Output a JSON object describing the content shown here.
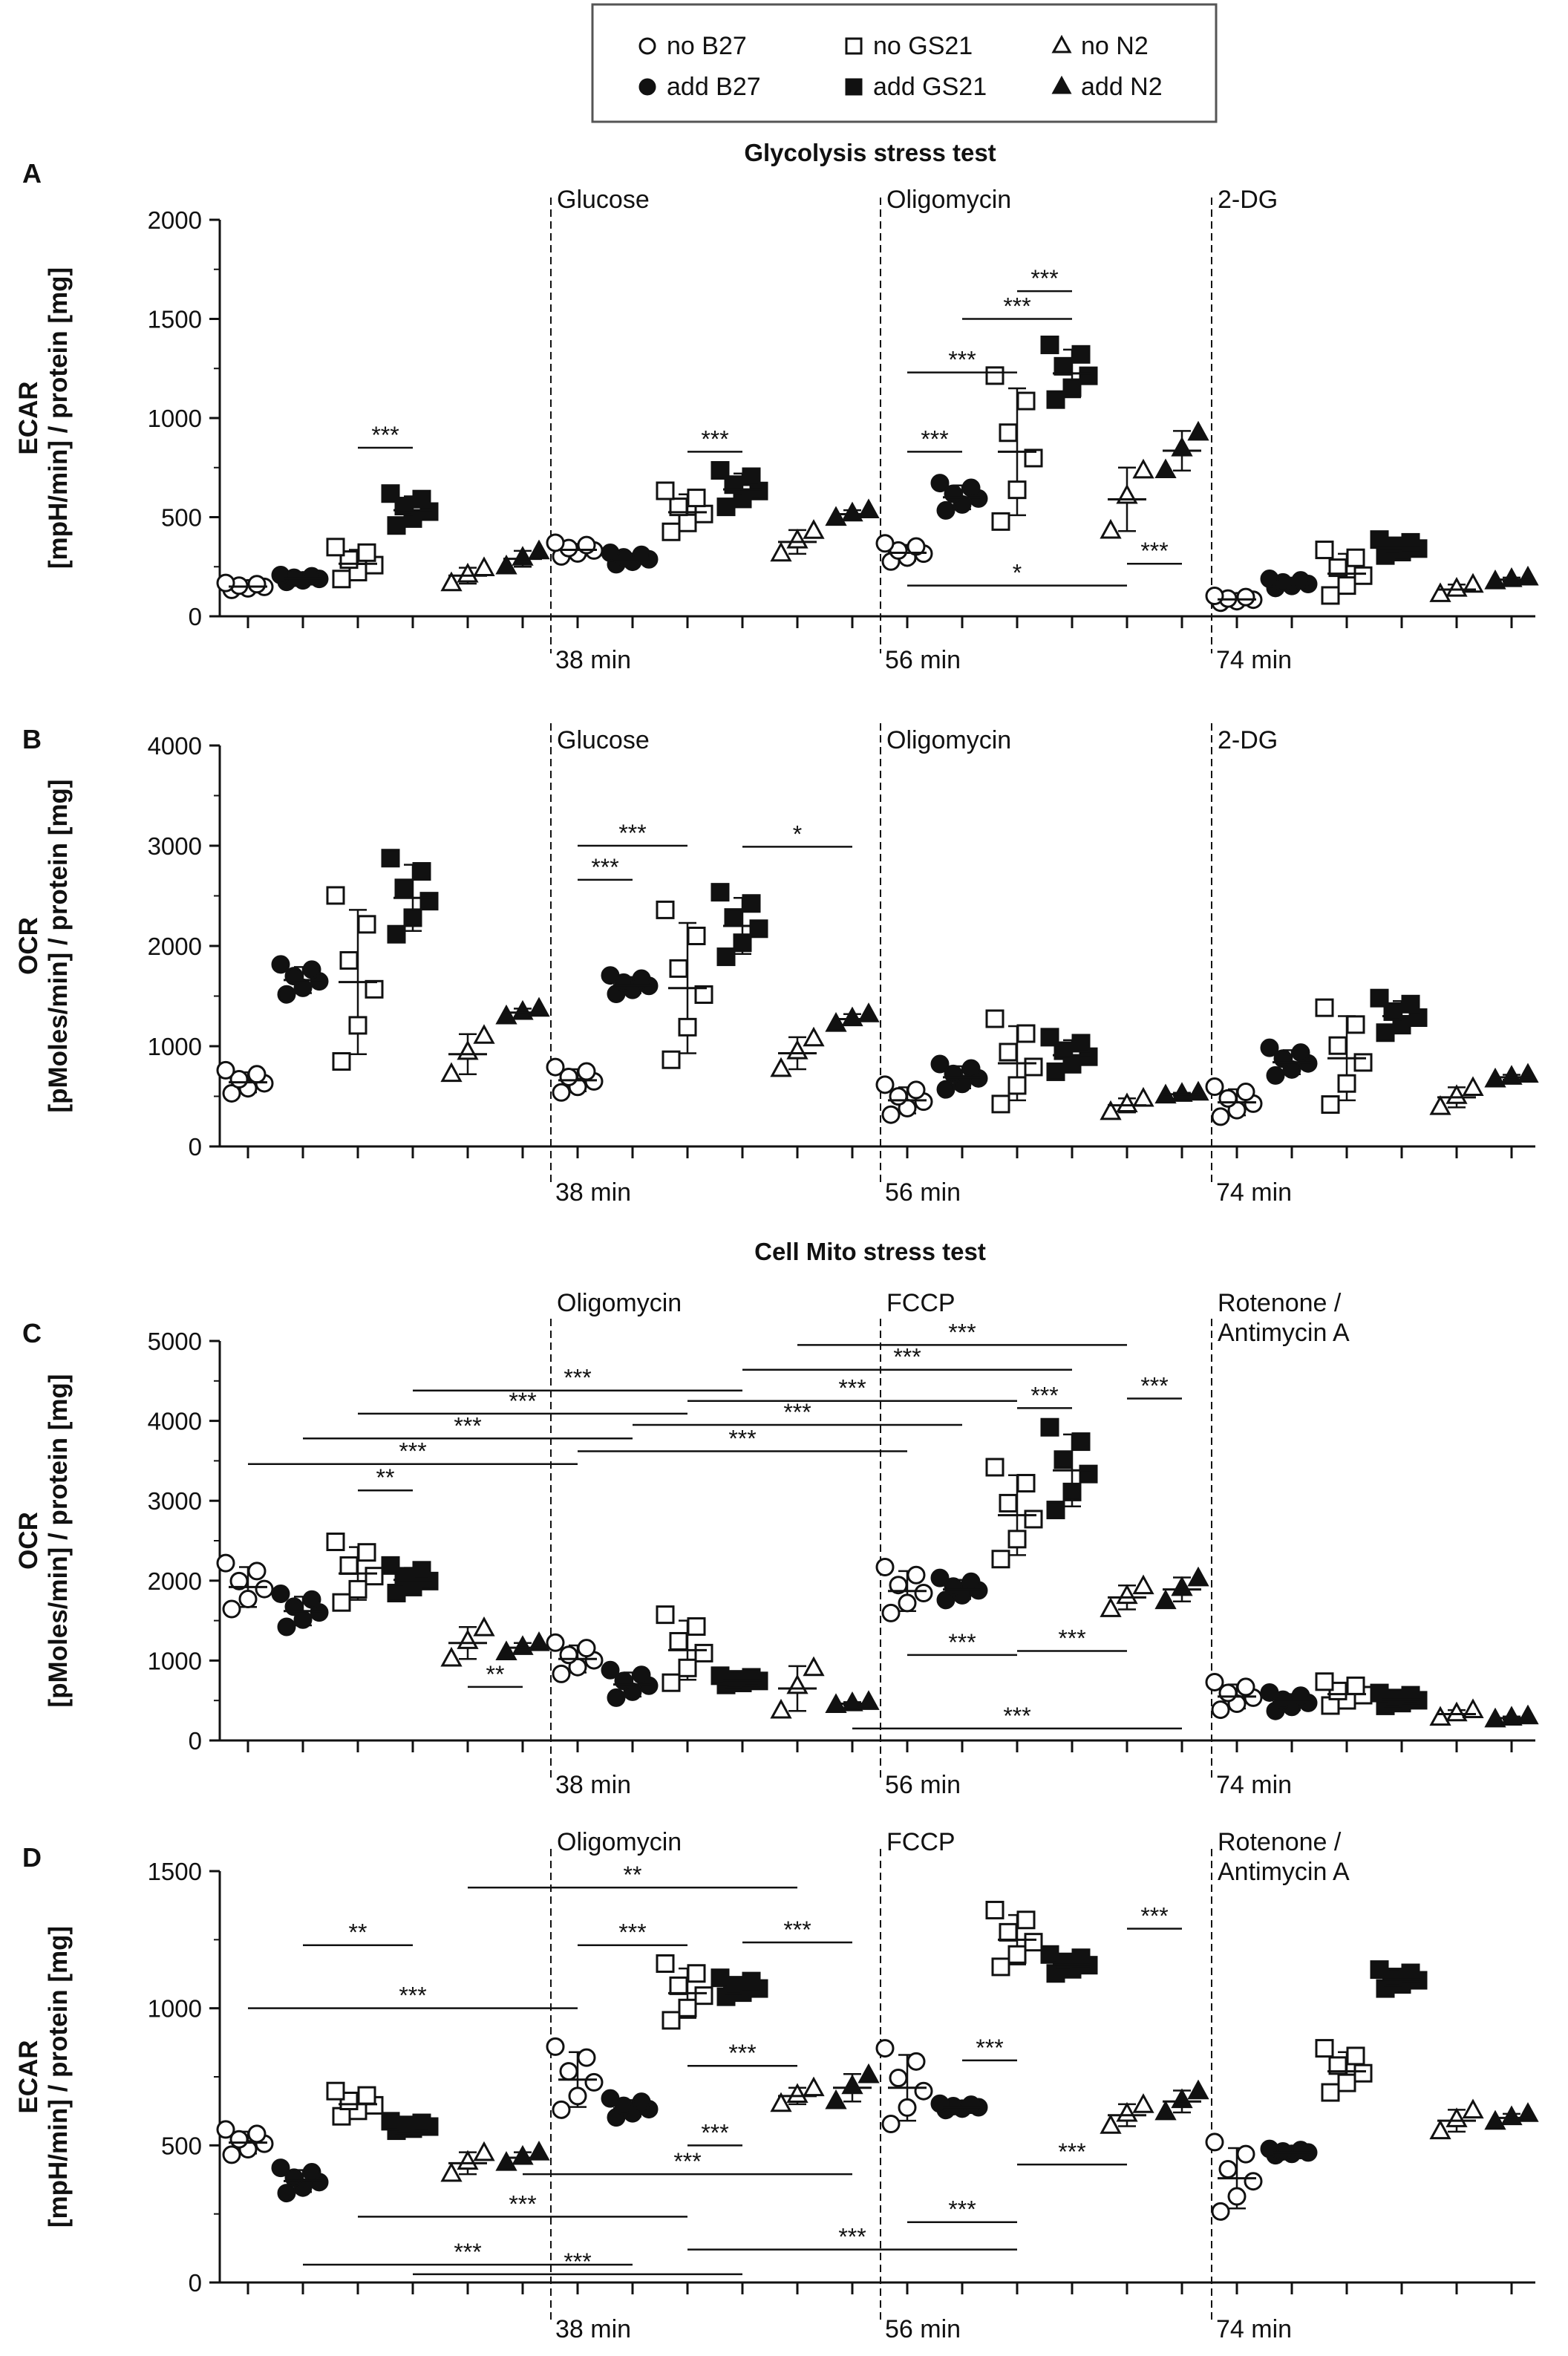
{
  "legend": {
    "items": [
      {
        "label": "no B27",
        "shape": "circle",
        "filled": false
      },
      {
        "label": "no GS21",
        "shape": "square",
        "filled": false
      },
      {
        "label": "no N2",
        "shape": "triangle",
        "filled": false
      },
      {
        "label": "add B27",
        "shape": "circle",
        "filled": true
      },
      {
        "label": "add GS21",
        "shape": "square",
        "filled": true
      },
      {
        "label": "add N2",
        "shape": "triangle",
        "filled": true
      }
    ]
  },
  "colors": {
    "ink": "#111111",
    "background": "#ffffff",
    "frame": "#555555"
  },
  "groups": [
    "no B27",
    "add B27",
    "no GS21",
    "add GS21",
    "no N2",
    "add N2"
  ],
  "section_titles": [
    "Glycolysis stress test",
    "Cell Mito stress test"
  ],
  "chart_data": [
    {
      "panel": "A",
      "type": "scatter",
      "title": "Glycolysis stress test",
      "ylabel_line1": "ECAR",
      "ylabel_line2": "[mpH/min] / protein [mg]",
      "ylim": [
        0,
        2000
      ],
      "yticks": [
        0,
        500,
        1000,
        1500,
        2000
      ],
      "injections": [
        "Glucose",
        "Oligomycin",
        "2-DG"
      ],
      "time_labels": [
        "38 min",
        "56 min",
        "74 min"
      ],
      "series": [
        {
          "phase": 0,
          "means": [
            150,
            190,
            265,
            535,
            205,
            290
          ],
          "sd": [
            15,
            15,
            70,
            70,
            40,
            40
          ]
        },
        {
          "phase": 1,
          "means": [
            335,
            290,
            525,
            640,
            375,
            515
          ],
          "sd": [
            30,
            25,
            90,
            80,
            60,
            20
          ]
        },
        {
          "phase": 2,
          "means": [
            320,
            600,
            830,
            1225,
            590,
            835
          ],
          "sd": [
            40,
            60,
            320,
            120,
            160,
            100
          ]
        },
        {
          "phase": 3,
          "means": [
            85,
            165,
            215,
            345,
            135,
            185
          ],
          "sd": [
            15,
            20,
            100,
            35,
            25,
            10
          ]
        }
      ],
      "significance": [
        {
          "from": 2,
          "to": 3,
          "y": 850,
          "label": "***"
        },
        {
          "from": 8,
          "to": 9,
          "y": 830,
          "label": "***"
        },
        {
          "from": 12,
          "to": 13,
          "y": 830,
          "label": "***"
        },
        {
          "from": 12,
          "to": 14,
          "y": 1230,
          "label": "***"
        },
        {
          "from": 13,
          "to": 15,
          "y": 1500,
          "label": "***"
        },
        {
          "from": 14,
          "to": 15,
          "y": 1640,
          "label": "***"
        },
        {
          "from": 16,
          "to": 17,
          "y": 265,
          "label": "***"
        },
        {
          "from": 12,
          "to": 16,
          "y": 155,
          "label": "*"
        }
      ]
    },
    {
      "panel": "B",
      "type": "scatter",
      "ylabel_line1": "OCR",
      "ylabel_line2": "[pMoles/min] / protein [mg]",
      "ylim": [
        0,
        4000
      ],
      "yticks": [
        0,
        1000,
        2000,
        3000,
        4000
      ],
      "injections": [
        "Glucose",
        "Oligomycin",
        "2-DG"
      ],
      "time_labels": [
        "38 min",
        "56 min",
        "74 min"
      ],
      "series": [
        {
          "phase": 0,
          "means": [
            640,
            1660,
            1640,
            2480,
            920,
            1335
          ],
          "sd": [
            100,
            130,
            720,
            330,
            200,
            40
          ]
        },
        {
          "phase": 1,
          "means": [
            660,
            1610,
            1580,
            2200,
            930,
            1270
          ],
          "sd": [
            110,
            80,
            650,
            280,
            160,
            50
          ]
        },
        {
          "phase": 2,
          "means": [
            460,
            690,
            830,
            910,
            410,
            520
          ],
          "sd": [
            130,
            110,
            370,
            150,
            70,
            15
          ]
        },
        {
          "phase": 3,
          "means": [
            440,
            840,
            880,
            1300,
            490,
            690
          ],
          "sd": [
            130,
            120,
            420,
            150,
            100,
            25
          ]
        }
      ],
      "significance": [
        {
          "from": 6,
          "to": 7,
          "y": 2660,
          "label": "***"
        },
        {
          "from": 6,
          "to": 8,
          "y": 3000,
          "label": "***"
        },
        {
          "from": 9,
          "to": 11,
          "y": 2990,
          "label": "*"
        }
      ]
    },
    {
      "panel": "C",
      "type": "scatter",
      "title": "Cell Mito stress test",
      "ylabel_line1": "OCR",
      "ylabel_line2": "[pMoles/min] / protein [mg]",
      "ylim": [
        0,
        5000
      ],
      "yticks": [
        0,
        1000,
        2000,
        3000,
        4000,
        5000
      ],
      "injections": [
        "Oligomycin",
        "FCCP",
        "Rotenone /\nAntimycin A"
      ],
      "time_labels": [
        "38 min",
        "56 min",
        "74 min"
      ],
      "series": [
        {
          "phase": 0,
          "means": [
            1920,
            1620,
            2090,
            2010,
            1220,
            1160
          ],
          "sd": [
            250,
            180,
            330,
            150,
            200,
            60
          ]
        },
        {
          "phase": 1,
          "means": [
            1020,
            700,
            1130,
            750,
            650,
            460
          ],
          "sd": [
            170,
            150,
            370,
            50,
            280,
            20
          ]
        },
        {
          "phase": 2,
          "means": [
            1870,
            1890,
            2820,
            3380,
            1790,
            1890
          ],
          "sd": [
            250,
            120,
            500,
            450,
            150,
            150
          ]
        },
        {
          "phase": 3,
          "means": [
            550,
            480,
            580,
            510,
            330,
            280
          ],
          "sd": [
            150,
            100,
            130,
            70,
            50,
            20
          ]
        }
      ],
      "significance": [
        {
          "from": 0,
          "to": 6,
          "y": 3460,
          "label": "***"
        },
        {
          "from": 1,
          "to": 7,
          "y": 3780,
          "label": "***"
        },
        {
          "from": 2,
          "to": 3,
          "y": 3130,
          "label": "**"
        },
        {
          "from": 2,
          "to": 8,
          "y": 4090,
          "label": "***"
        },
        {
          "from": 3,
          "to": 9,
          "y": 4380,
          "label": "***"
        },
        {
          "from": 4,
          "to": 5,
          "y": 670,
          "label": "**"
        },
        {
          "from": 6,
          "to": 12,
          "y": 3620,
          "label": "***"
        },
        {
          "from": 7,
          "to": 13,
          "y": 3950,
          "label": "***"
        },
        {
          "from": 8,
          "to": 14,
          "y": 4250,
          "label": "***"
        },
        {
          "from": 9,
          "to": 15,
          "y": 4640,
          "label": "***"
        },
        {
          "from": 10,
          "to": 16,
          "y": 4950,
          "label": "***"
        },
        {
          "from": 14,
          "to": 15,
          "y": 4160,
          "label": "***"
        },
        {
          "from": 16,
          "to": 17,
          "y": 4280,
          "label": "***"
        },
        {
          "from": 12,
          "to": 14,
          "y": 1070,
          "label": "***"
        },
        {
          "from": 14,
          "to": 16,
          "y": 1120,
          "label": "***"
        },
        {
          "from": 11,
          "to": 17,
          "y": 150,
          "label": "***"
        }
      ]
    },
    {
      "panel": "D",
      "type": "scatter",
      "ylabel_line1": "ECAR",
      "ylabel_line2": "[mpH/min] / protein [mg]",
      "ylim": [
        0,
        1500
      ],
      "yticks": [
        0,
        500,
        1000,
        1500
      ],
      "injections": [
        "Oligomycin",
        "FCCP",
        "Rotenone /\nAntimycin A"
      ],
      "time_labels": [
        "38 min",
        "56 min",
        "74 min"
      ],
      "series": [
        {
          "phase": 0,
          "means": [
            510,
            370,
            650,
            570,
            435,
            455
          ],
          "sd": [
            40,
            40,
            40,
            15,
            40,
            20
          ]
        },
        {
          "phase": 1,
          "means": [
            740,
            635,
            1055,
            1075,
            680,
            710
          ],
          "sd": [
            100,
            30,
            90,
            30,
            30,
            50
          ]
        },
        {
          "phase": 2,
          "means": [
            710,
            640,
            1250,
            1160,
            610,
            660
          ],
          "sd": [
            120,
            10,
            90,
            30,
            40,
            40
          ]
        },
        {
          "phase": 3,
          "means": [
            380,
            475,
            770,
            1105,
            590,
            600
          ],
          "sd": [
            110,
            10,
            70,
            30,
            40,
            15
          ]
        }
      ],
      "significance": [
        {
          "from": 0,
          "to": 6,
          "y": 1000,
          "label": "***"
        },
        {
          "from": 1,
          "to": 3,
          "y": 1230,
          "label": "**"
        },
        {
          "from": 4,
          "to": 10,
          "y": 1440,
          "label": "**"
        },
        {
          "from": 6,
          "to": 8,
          "y": 1230,
          "label": "***"
        },
        {
          "from": 9,
          "to": 11,
          "y": 1240,
          "label": "***"
        },
        {
          "from": 8,
          "to": 10,
          "y": 790,
          "label": "***"
        },
        {
          "from": 8,
          "to": 9,
          "y": 500,
          "label": "***"
        },
        {
          "from": 5,
          "to": 11,
          "y": 395,
          "label": "***"
        },
        {
          "from": 2,
          "to": 8,
          "y": 240,
          "label": "***"
        },
        {
          "from": 1,
          "to": 7,
          "y": 65,
          "label": "***"
        },
        {
          "from": 3,
          "to": 9,
          "y": 30,
          "label": "***"
        },
        {
          "from": 8,
          "to": 14,
          "y": 120,
          "label": "***"
        },
        {
          "from": 13,
          "to": 14,
          "y": 810,
          "label": "***"
        },
        {
          "from": 14,
          "to": 16,
          "y": 430,
          "label": "***"
        },
        {
          "from": 16,
          "to": 17,
          "y": 1290,
          "label": "***"
        },
        {
          "from": 12,
          "to": 14,
          "y": 220,
          "label": "***"
        }
      ]
    }
  ]
}
